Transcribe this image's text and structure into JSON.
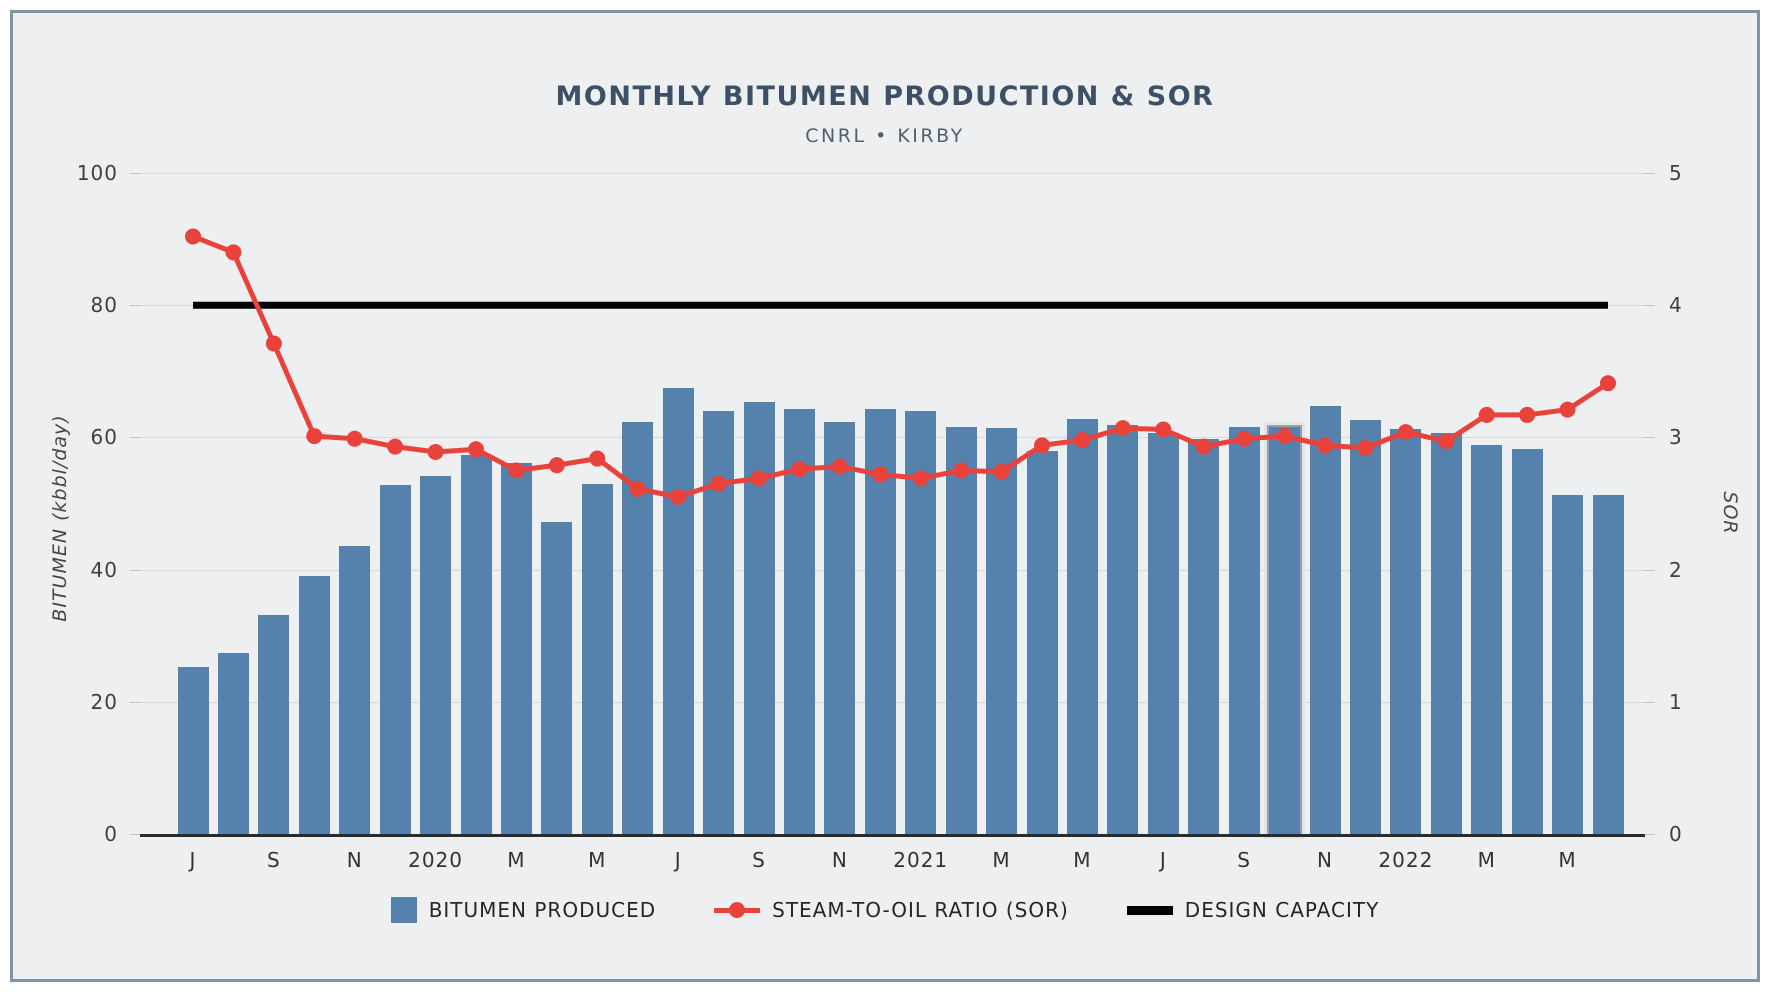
{
  "header": {
    "title": "MONTHLY BITUMEN PRODUCTION & SOR",
    "subtitle": "CNRL • KIRBY"
  },
  "axes": {
    "left_title": "BITUMEN (kbbl/day)",
    "right_title": "SOR",
    "left_ticks": [
      0,
      20,
      40,
      60,
      80,
      100
    ],
    "right_ticks": [
      0,
      1,
      2,
      3,
      4,
      5
    ],
    "x_labels": [
      "J",
      "S",
      "N",
      "2020",
      "M",
      "M",
      "J",
      "S",
      "N",
      "2021",
      "M",
      "M",
      "J",
      "S",
      "N",
      "2022",
      "M",
      "M"
    ]
  },
  "legend": {
    "items": [
      {
        "label": "BITUMEN PRODUCED",
        "marker": "bar-swatch"
      },
      {
        "label": "STEAM-TO-OIL RATIO (SOR)",
        "marker": "line-dot-swatch"
      },
      {
        "label": "DESIGN CAPACITY",
        "marker": "thick-line-swatch"
      }
    ]
  },
  "colors": {
    "bar": "#5581ad",
    "sor_line": "#e8423b",
    "design_capacity": "#000000",
    "card_background": "#edeff1",
    "card_border": "#8094a8",
    "gridline": "#d6d8db",
    "title": "#3d5065"
  },
  "chart_data": {
    "type": "bar+line",
    "title": "MONTHLY BITUMEN PRODUCTION & SOR",
    "subtitle": "CNRL • KIRBY",
    "x": [
      "2019-07",
      "2019-08",
      "2019-09",
      "2019-10",
      "2019-11",
      "2019-12",
      "2020-01",
      "2020-02",
      "2020-03",
      "2020-04",
      "2020-05",
      "2020-06",
      "2020-07",
      "2020-08",
      "2020-09",
      "2020-10",
      "2020-11",
      "2020-12",
      "2021-01",
      "2021-02",
      "2021-03",
      "2021-04",
      "2021-05",
      "2021-06",
      "2021-07",
      "2021-08",
      "2021-09",
      "2021-10",
      "2021-11",
      "2021-12",
      "2022-01",
      "2022-02",
      "2022-03",
      "2022-04",
      "2022-05",
      "2022-06"
    ],
    "series": [
      {
        "name": "BITUMEN PRODUCED",
        "type": "bar",
        "axis": "left",
        "unit": "kbbl/day",
        "values": [
          25.2,
          27.4,
          33.1,
          39.0,
          43.6,
          52.8,
          54.2,
          57.3,
          56.1,
          47.2,
          52.9,
          62.4,
          67.4,
          64.0,
          65.3,
          64.3,
          62.4,
          64.3,
          64.0,
          61.6,
          61.4,
          58.0,
          62.8,
          61.9,
          60.6,
          59.7,
          61.6,
          61.6,
          64.8,
          62.6,
          61.3,
          60.6,
          58.9,
          58.2,
          51.3,
          51.3
        ]
      },
      {
        "name": "STEAM-TO-OIL RATIO (SOR)",
        "type": "line",
        "axis": "right",
        "unit": "ratio",
        "values": [
          4.52,
          4.4,
          3.71,
          3.01,
          2.99,
          2.93,
          2.89,
          2.91,
          2.75,
          2.79,
          2.84,
          2.61,
          2.55,
          2.65,
          2.69,
          2.76,
          2.78,
          2.72,
          2.69,
          2.75,
          2.74,
          2.94,
          2.98,
          3.07,
          3.06,
          2.93,
          2.99,
          3.01,
          2.94,
          2.92,
          3.04,
          2.97,
          3.17,
          3.17,
          3.21,
          3.41
        ]
      },
      {
        "name": "DESIGN CAPACITY",
        "type": "hline",
        "axis": "left",
        "value": 80
      }
    ],
    "highlighted_bar_index": 27,
    "xlabel": "",
    "ylabel": "BITUMEN (kbbl/day)",
    "y2label": "SOR",
    "ylim": [
      0,
      100
    ],
    "y2lim": [
      0,
      5
    ],
    "grid": true,
    "legend_position": "bottom"
  }
}
